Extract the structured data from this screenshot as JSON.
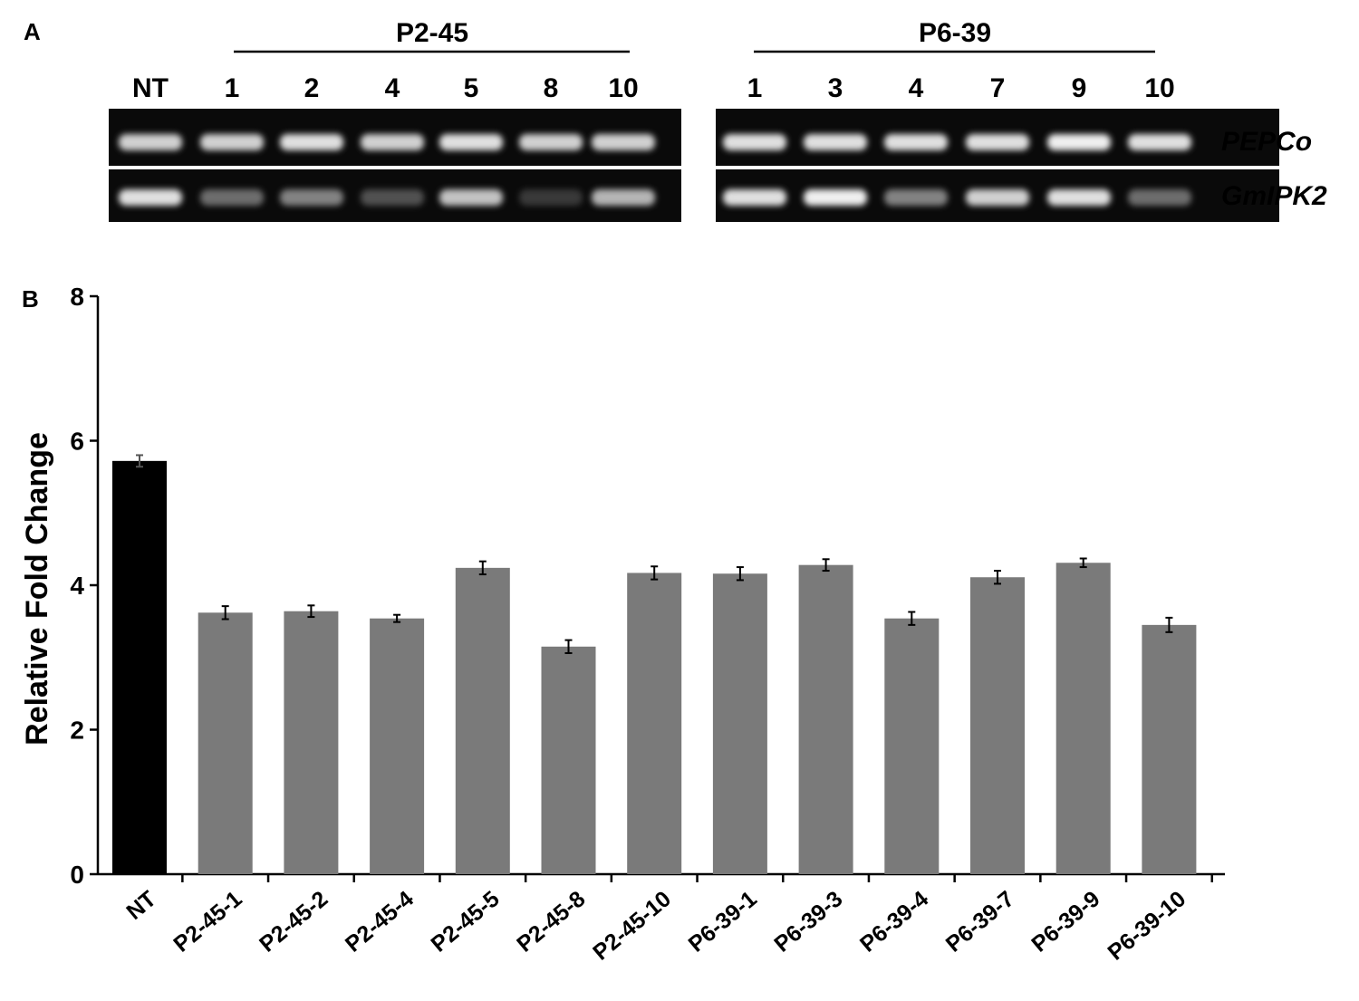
{
  "panel_a": {
    "label": "A",
    "groups": [
      {
        "name": "P2-45",
        "lanes": [
          "NT",
          "1",
          "2",
          "4",
          "5",
          "8",
          "10"
        ]
      },
      {
        "name": "P6-39",
        "lanes": [
          "1",
          "3",
          "4",
          "7",
          "9",
          "10"
        ]
      }
    ],
    "genes": [
      "PEPCo",
      "GmIPK2"
    ],
    "band_intensity": {
      "P2-45": {
        "PEPCo": [
          0.85,
          0.85,
          0.9,
          0.85,
          0.9,
          0.85,
          0.85
        ],
        "GmIPK2": [
          0.9,
          0.45,
          0.55,
          0.3,
          0.8,
          0.15,
          0.75
        ]
      },
      "P6-39": {
        "PEPCo": [
          0.9,
          0.9,
          0.9,
          0.9,
          0.95,
          0.9
        ],
        "GmIPK2": [
          0.9,
          0.95,
          0.55,
          0.85,
          0.9,
          0.45
        ]
      }
    }
  },
  "panel_b": {
    "label": "B"
  },
  "chart_data": {
    "type": "bar",
    "categories": [
      "NT",
      "P2-45-1",
      "P2-45-2",
      "P2-45-4",
      "P2-45-5",
      "P2-45-8",
      "P2-45-10",
      "P6-39-1",
      "P6-39-3",
      "P6-39-4",
      "P6-39-7",
      "P6-39-9",
      "P6-39-10"
    ],
    "values": [
      5.72,
      3.62,
      3.64,
      3.54,
      4.24,
      3.15,
      4.17,
      4.16,
      4.28,
      3.54,
      4.11,
      4.31,
      3.45
    ],
    "errors": [
      0.08,
      0.09,
      0.08,
      0.05,
      0.09,
      0.09,
      0.09,
      0.09,
      0.08,
      0.09,
      0.09,
      0.06,
      0.1
    ],
    "bar_colors": [
      "#000000",
      "#7a7a7a",
      "#7a7a7a",
      "#7a7a7a",
      "#7a7a7a",
      "#7a7a7a",
      "#7a7a7a",
      "#7a7a7a",
      "#7a7a7a",
      "#7a7a7a",
      "#7a7a7a",
      "#7a7a7a",
      "#7a7a7a"
    ],
    "ylabel": "Relative Fold Change",
    "xlabel": "",
    "title": "",
    "ylim": [
      0,
      8
    ],
    "yticks": [
      0,
      2,
      4,
      6,
      8
    ],
    "grid": false
  }
}
